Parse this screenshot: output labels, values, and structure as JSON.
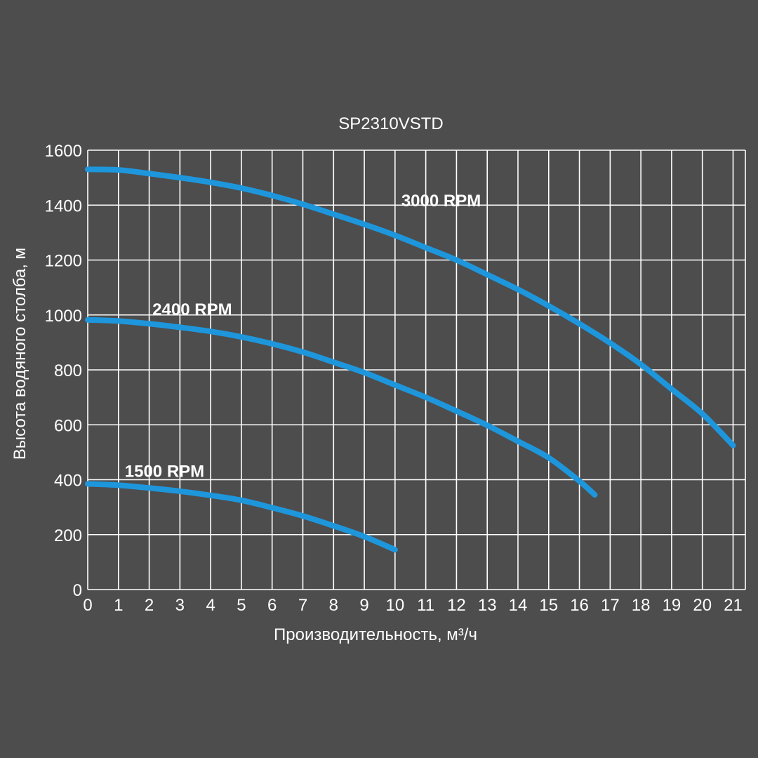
{
  "chart_data": {
    "type": "line",
    "title": "SP2310VSTD",
    "xlabel": "Производительность, м³/ч",
    "ylabel": "Высота водяного столба, м",
    "xlim": [
      0,
      21.4
    ],
    "ylim": [
      0,
      1600
    ],
    "x_ticks": [
      0,
      1,
      2,
      3,
      4,
      5,
      6,
      7,
      8,
      9,
      10,
      11,
      12,
      13,
      14,
      15,
      16,
      17,
      18,
      19,
      20,
      21
    ],
    "y_ticks": [
      0,
      200,
      400,
      600,
      800,
      1000,
      1200,
      1400,
      1600
    ],
    "grid": true,
    "background_color": "#4d4d4d",
    "grid_color": "#ffffff",
    "series": [
      {
        "name": "3000 RPM",
        "color": "#1e96dc",
        "label_position": [
          11.5,
          1395
        ],
        "points": [
          [
            0,
            1530
          ],
          [
            1,
            1528
          ],
          [
            2,
            1515
          ],
          [
            3,
            1500
          ],
          [
            4,
            1483
          ],
          [
            5,
            1462
          ],
          [
            6,
            1435
          ],
          [
            7,
            1403
          ],
          [
            8,
            1367
          ],
          [
            9,
            1330
          ],
          [
            10,
            1290
          ],
          [
            11,
            1245
          ],
          [
            12,
            1200
          ],
          [
            13,
            1147
          ],
          [
            14,
            1093
          ],
          [
            15,
            1033
          ],
          [
            16,
            968
          ],
          [
            17,
            898
          ],
          [
            18,
            820
          ],
          [
            19,
            730
          ],
          [
            20,
            640
          ],
          [
            21,
            525
          ]
        ]
      },
      {
        "name": "2400 RPM",
        "color": "#1e96dc",
        "label_position": [
          3.4,
          1000
        ],
        "points": [
          [
            0,
            982
          ],
          [
            1,
            978
          ],
          [
            2,
            968
          ],
          [
            3,
            955
          ],
          [
            4,
            940
          ],
          [
            5,
            920
          ],
          [
            6,
            895
          ],
          [
            7,
            865
          ],
          [
            8,
            828
          ],
          [
            9,
            790
          ],
          [
            10,
            745
          ],
          [
            11,
            700
          ],
          [
            12,
            650
          ],
          [
            13,
            598
          ],
          [
            14,
            540
          ],
          [
            15,
            480
          ],
          [
            16,
            395
          ],
          [
            16.5,
            345
          ]
        ]
      },
      {
        "name": "1500 RPM",
        "color": "#1e96dc",
        "label_position": [
          2.5,
          410
        ],
        "points": [
          [
            0,
            385
          ],
          [
            1,
            380
          ],
          [
            2,
            370
          ],
          [
            3,
            358
          ],
          [
            4,
            343
          ],
          [
            5,
            325
          ],
          [
            6,
            298
          ],
          [
            7,
            268
          ],
          [
            8,
            232
          ],
          [
            9,
            193
          ],
          [
            10,
            145
          ]
        ]
      }
    ]
  }
}
